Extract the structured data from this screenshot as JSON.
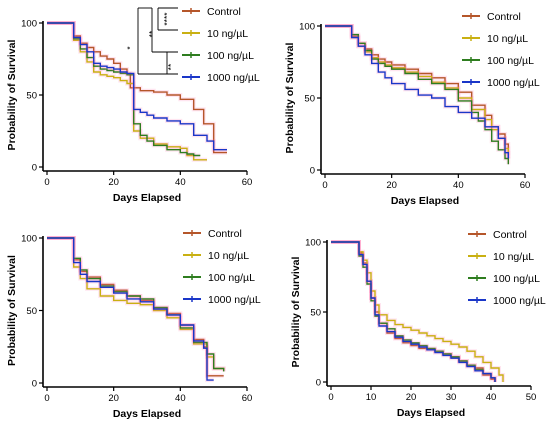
{
  "chart_data": [
    {
      "type": "line",
      "step": true,
      "xlabel": "Days Elapsed",
      "ylabel": "Probability of Survival",
      "xlim": [
        0,
        60
      ],
      "ylim": [
        0,
        100
      ],
      "xticks": [
        0,
        20,
        40,
        60
      ],
      "yticks": [
        0,
        50,
        100
      ],
      "legend": "top-right",
      "significance": [
        {
          "pair": "Control vs 10 ng/µL",
          "label": "****"
        },
        {
          "pair": "Control vs 100 ng/µL",
          "label": "**"
        },
        {
          "pair": "Control vs 1000 ng/µL",
          "label": "*"
        },
        {
          "pair": "10 ng/µL vs 1000 ng/µL",
          "label": "**"
        }
      ],
      "series": [
        {
          "name": "Control",
          "color": "#b5562a",
          "x": [
            0,
            6,
            8,
            10,
            12,
            14,
            16,
            18,
            20,
            22,
            24,
            25,
            28,
            32,
            36,
            40,
            44,
            47,
            50,
            54
          ],
          "y": [
            100,
            100,
            91,
            86,
            83,
            80,
            77,
            75,
            72,
            68,
            65,
            55,
            53,
            52,
            50,
            47,
            40,
            30,
            10,
            10
          ]
        },
        {
          "name": "10 ng/µL",
          "color": "#c9b012",
          "x": [
            0,
            6,
            8,
            10,
            12,
            14,
            16,
            18,
            20,
            22,
            24,
            26,
            28,
            32,
            36,
            40,
            42,
            44,
            46,
            48
          ],
          "y": [
            100,
            100,
            88,
            80,
            73,
            66,
            64,
            63,
            62,
            60,
            58,
            25,
            20,
            16,
            14,
            13,
            8,
            5,
            5,
            5
          ]
        },
        {
          "name": "100 ng/µL",
          "color": "#2e7d1f",
          "x": [
            0,
            6,
            8,
            10,
            12,
            14,
            16,
            18,
            20,
            22,
            24,
            26,
            28,
            30,
            32,
            36,
            40,
            42,
            44,
            46
          ],
          "y": [
            100,
            100,
            89,
            82,
            76,
            70,
            68,
            67,
            66,
            65,
            64,
            30,
            22,
            18,
            15,
            12,
            10,
            9,
            8,
            8
          ]
        },
        {
          "name": "1000 ng/µL",
          "color": "#1a36c8",
          "x": [
            0,
            6,
            8,
            10,
            12,
            14,
            16,
            18,
            20,
            22,
            24,
            26,
            28,
            30,
            32,
            36,
            40,
            44,
            48,
            50,
            54
          ],
          "y": [
            100,
            100,
            90,
            85,
            80,
            72,
            70,
            69,
            68,
            66,
            65,
            40,
            38,
            36,
            34,
            32,
            30,
            22,
            18,
            12,
            12
          ]
        }
      ]
    },
    {
      "type": "line",
      "step": true,
      "xlabel": "Days Elapsed",
      "ylabel": "Probability of Survival",
      "xlim": [
        0,
        60
      ],
      "ylim": [
        0,
        100
      ],
      "xticks": [
        0,
        20,
        40,
        60
      ],
      "yticks": [
        0,
        50,
        100
      ],
      "legend": "top-right",
      "series": [
        {
          "name": "Control",
          "color": "#b5562a",
          "x": [
            0,
            6,
            8,
            10,
            12,
            14,
            16,
            18,
            20,
            24,
            28,
            32,
            36,
            40,
            44,
            48,
            50,
            52,
            54,
            55
          ],
          "y": [
            100,
            100,
            93,
            88,
            84,
            80,
            77,
            75,
            73,
            70,
            67,
            64,
            60,
            54,
            45,
            38,
            30,
            25,
            18,
            10
          ]
        },
        {
          "name": "10 ng/µL",
          "color": "#c9b012",
          "x": [
            0,
            6,
            8,
            10,
            12,
            14,
            16,
            18,
            20,
            24,
            28,
            32,
            36,
            40,
            44,
            48,
            50,
            52,
            54,
            55
          ],
          "y": [
            100,
            100,
            92,
            86,
            82,
            78,
            75,
            73,
            71,
            68,
            65,
            61,
            57,
            50,
            42,
            35,
            28,
            22,
            15,
            8
          ]
        },
        {
          "name": "100 ng/µL",
          "color": "#2e7d1f",
          "x": [
            0,
            6,
            8,
            10,
            12,
            14,
            16,
            18,
            20,
            24,
            28,
            32,
            36,
            40,
            44,
            46,
            48,
            50,
            52,
            54,
            55
          ],
          "y": [
            100,
            100,
            94,
            88,
            83,
            77,
            74,
            72,
            70,
            67,
            63,
            60,
            56,
            48,
            40,
            34,
            28,
            20,
            14,
            8,
            4
          ]
        },
        {
          "name": "1000 ng/µL",
          "color": "#1a36c8",
          "x": [
            0,
            6,
            8,
            10,
            12,
            14,
            16,
            18,
            20,
            24,
            28,
            32,
            36,
            40,
            44,
            48,
            52,
            54,
            55
          ],
          "y": [
            100,
            100,
            92,
            86,
            80,
            74,
            68,
            64,
            60,
            56,
            52,
            50,
            44,
            40,
            36,
            30,
            22,
            12,
            8
          ]
        }
      ]
    },
    {
      "type": "line",
      "step": true,
      "xlabel": "Days Elapsed",
      "ylabel": "Probability of Survival",
      "xlim": [
        0,
        60
      ],
      "ylim": [
        0,
        100
      ],
      "xticks": [
        0,
        20,
        40,
        60
      ],
      "yticks": [
        0,
        50,
        100
      ],
      "legend": "top-right",
      "series": [
        {
          "name": "Control",
          "color": "#b5562a",
          "x": [
            0,
            6,
            8,
            10,
            12,
            16,
            20,
            24,
            28,
            32,
            36,
            40,
            44,
            47,
            48,
            50,
            53
          ],
          "y": [
            100,
            100,
            85,
            77,
            73,
            68,
            64,
            60,
            57,
            52,
            48,
            40,
            30,
            25,
            5,
            5,
            5
          ]
        },
        {
          "name": "10 ng/µL",
          "color": "#c9b012",
          "x": [
            0,
            6,
            8,
            10,
            12,
            16,
            20,
            24,
            28,
            32,
            36,
            40,
            44,
            48,
            50,
            53
          ],
          "y": [
            100,
            100,
            80,
            72,
            65,
            60,
            57,
            55,
            54,
            50,
            45,
            37,
            27,
            18,
            10,
            8
          ]
        },
        {
          "name": "100 ng/µL",
          "color": "#2e7d1f",
          "x": [
            0,
            6,
            8,
            10,
            12,
            16,
            20,
            24,
            28,
            32,
            36,
            40,
            44,
            48,
            50,
            53
          ],
          "y": [
            100,
            100,
            86,
            78,
            72,
            67,
            63,
            60,
            58,
            52,
            47,
            38,
            28,
            20,
            10,
            8
          ]
        },
        {
          "name": "1000 ng/µL",
          "color": "#1a36c8",
          "x": [
            0,
            6,
            8,
            10,
            12,
            16,
            20,
            24,
            28,
            32,
            36,
            40,
            44,
            47,
            48,
            50
          ],
          "y": [
            100,
            100,
            83,
            75,
            70,
            66,
            62,
            58,
            56,
            51,
            47,
            40,
            29,
            24,
            2,
            2
          ]
        }
      ]
    },
    {
      "type": "line",
      "step": true,
      "xlabel": "Days Elapsed",
      "ylabel": "Probability of Survival",
      "xlim": [
        0,
        50
      ],
      "ylim": [
        0,
        100
      ],
      "xticks": [
        0,
        10,
        20,
        30,
        40,
        50
      ],
      "yticks": [
        0,
        50,
        100
      ],
      "legend": "top-right",
      "series": [
        {
          "name": "Control",
          "color": "#b5562a",
          "x": [
            0,
            6,
            7,
            8,
            9,
            10,
            11,
            12,
            14,
            16,
            18,
            20,
            22,
            24,
            26,
            28,
            30,
            32,
            34,
            36,
            38,
            40,
            41
          ],
          "y": [
            100,
            100,
            92,
            85,
            72,
            60,
            50,
            42,
            35,
            31,
            28,
            26,
            24,
            23,
            22,
            20,
            18,
            15,
            12,
            10,
            5,
            2,
            0
          ]
        },
        {
          "name": "10 ng/µL",
          "color": "#c9b012",
          "x": [
            0,
            6,
            7,
            8,
            9,
            10,
            11,
            12,
            14,
            16,
            18,
            20,
            22,
            24,
            26,
            28,
            30,
            32,
            34,
            36,
            38,
            40,
            42,
            43
          ],
          "y": [
            100,
            100,
            93,
            87,
            78,
            65,
            55,
            48,
            44,
            41,
            39,
            37,
            35,
            33,
            31,
            29,
            27,
            25,
            22,
            18,
            14,
            10,
            5,
            0
          ]
        },
        {
          "name": "100 ng/µL",
          "color": "#2e7d1f",
          "x": [
            0,
            6,
            7,
            8,
            9,
            10,
            11,
            12,
            14,
            16,
            18,
            20,
            22,
            24,
            26,
            28,
            30,
            32,
            34,
            36,
            38,
            40,
            41
          ],
          "y": [
            100,
            100,
            90,
            82,
            70,
            58,
            47,
            42,
            38,
            33,
            30,
            28,
            26,
            24,
            22,
            20,
            18,
            15,
            12,
            9,
            6,
            3,
            0
          ]
        },
        {
          "name": "1000 ng/µL",
          "color": "#1a36c8",
          "x": [
            0,
            6,
            7,
            8,
            9,
            10,
            11,
            12,
            14,
            16,
            18,
            20,
            22,
            24,
            26,
            28,
            30,
            32,
            34,
            36,
            38,
            40,
            41
          ],
          "y": [
            100,
            100,
            91,
            84,
            72,
            60,
            48,
            40,
            36,
            32,
            29,
            27,
            25,
            23,
            21,
            19,
            17,
            14,
            11,
            8,
            6,
            3,
            0
          ]
        }
      ]
    }
  ]
}
